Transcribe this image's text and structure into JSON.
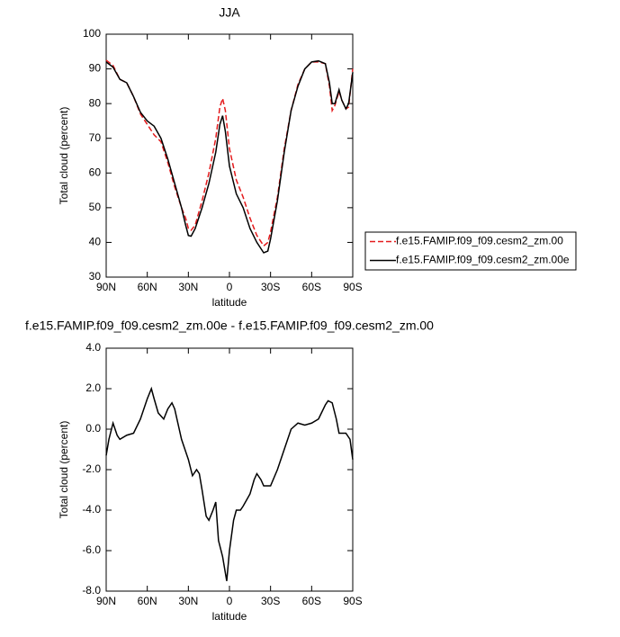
{
  "chart_data": [
    {
      "type": "line",
      "title": "JJA",
      "xlabel": "latitude",
      "ylabel": "Total cloud (percent)",
      "xlim": [
        90,
        -90
      ],
      "ylim": [
        30,
        100
      ],
      "xticks": [
        {
          "value": 90,
          "label": "90N"
        },
        {
          "value": 60,
          "label": "60N"
        },
        {
          "value": 30,
          "label": "30N"
        },
        0,
        {
          "value": -30,
          "label": "30S"
        },
        {
          "value": -60,
          "label": "60S"
        },
        {
          "value": -90,
          "label": "90S"
        }
      ],
      "yticks": [
        30,
        40,
        50,
        60,
        70,
        80,
        90,
        100
      ],
      "x": [
        90,
        85,
        80,
        75,
        70,
        65,
        60,
        55,
        50,
        45,
        40,
        35,
        32,
        30,
        28,
        25,
        20,
        15,
        10,
        7,
        5,
        3,
        0,
        -5,
        -10,
        -15,
        -20,
        -25,
        -28,
        -30,
        -35,
        -40,
        -45,
        -50,
        -55,
        -60,
        -65,
        -70,
        -73,
        -75,
        -77,
        -80,
        -82,
        -85,
        -87,
        -90
      ],
      "series": [
        {
          "name": "f.e15.FAMIP.f09_f09.cesm2_zm.00",
          "color": "#e41a1c",
          "dash": true,
          "values": [
            92.5,
            91,
            87,
            86,
            82,
            77,
            74,
            71,
            69,
            63,
            56,
            50,
            47,
            44,
            43.5,
            45,
            52,
            60,
            70,
            79,
            81.5,
            78,
            67,
            58,
            53,
            47,
            42,
            39,
            40,
            43,
            53,
            67,
            78,
            85.5,
            90,
            92,
            92,
            91.5,
            85,
            78,
            79.5,
            83.5,
            81,
            78.5,
            79,
            90
          ]
        },
        {
          "name": "f.e15.FAMIP.f09_f09.cesm2_zm.00e",
          "color": "#000000",
          "dash": false,
          "values": [
            92,
            90.5,
            87,
            86,
            82,
            77.5,
            75,
            73.5,
            70,
            64,
            57,
            50,
            45,
            42,
            41.8,
            44,
            50,
            57,
            66,
            74,
            76.5,
            72,
            62,
            54,
            50,
            44,
            40,
            37,
            37.5,
            41,
            52,
            66,
            78,
            85,
            90,
            92,
            92.3,
            91.5,
            86,
            80,
            80,
            84,
            81,
            78.5,
            80,
            89
          ]
        }
      ]
    },
    {
      "type": "line",
      "title": "f.e15.FAMIP.f09_f09.cesm2_zm.00e - f.e15.FAMIP.f09_f09.cesm2_zm.00",
      "xlabel": "latitude",
      "ylabel": "Total cloud (percent)",
      "xlim": [
        90,
        -90
      ],
      "ylim": [
        -8,
        4
      ],
      "xticks": [
        {
          "value": 90,
          "label": "90N"
        },
        {
          "value": 60,
          "label": "60N"
        },
        {
          "value": 30,
          "label": "30N"
        },
        0,
        {
          "value": -30,
          "label": "30S"
        },
        {
          "value": -60,
          "label": "60S"
        },
        {
          "value": -90,
          "label": "90S"
        }
      ],
      "yticks": [
        {
          "value": -8,
          "label": "-8.0"
        },
        {
          "value": -6,
          "label": "-6.0"
        },
        {
          "value": -4,
          "label": "-4.0"
        },
        {
          "value": -2,
          "label": "-2.0"
        },
        {
          "value": 0,
          "label": "0.0"
        },
        {
          "value": 2,
          "label": "2.0"
        },
        {
          "value": 4,
          "label": "4.0"
        }
      ],
      "x": [
        90,
        88,
        85,
        82,
        80,
        75,
        70,
        65,
        60,
        57,
        55,
        52,
        48,
        45,
        42,
        40,
        35,
        30,
        27,
        24,
        22,
        20,
        17,
        15,
        12,
        10,
        8,
        5,
        2,
        0,
        -3,
        -5,
        -8,
        -10,
        -15,
        -18,
        -20,
        -23,
        -25,
        -30,
        -35,
        -40,
        -45,
        -50,
        -55,
        -60,
        -65,
        -70,
        -72,
        -75,
        -78,
        -80,
        -85,
        -88,
        -90
      ],
      "series": [
        {
          "color": "#000000",
          "dash": false,
          "values": [
            -1.3,
            -0.5,
            0.3,
            -0.3,
            -0.5,
            -0.3,
            -0.2,
            0.5,
            1.5,
            2.0,
            1.5,
            0.8,
            0.5,
            1.0,
            1.3,
            1.0,
            -0.5,
            -1.5,
            -2.3,
            -2.0,
            -2.2,
            -3.0,
            -4.3,
            -4.5,
            -4.0,
            -3.6,
            -5.5,
            -6.3,
            -7.5,
            -6.0,
            -4.5,
            -4.0,
            -4.0,
            -3.8,
            -3.2,
            -2.5,
            -2.2,
            -2.5,
            -2.8,
            -2.8,
            -2.0,
            -1.0,
            0.0,
            0.3,
            0.2,
            0.3,
            0.5,
            1.2,
            1.4,
            1.3,
            0.5,
            -0.2,
            -0.2,
            -0.5,
            -1.5
          ]
        }
      ]
    }
  ]
}
